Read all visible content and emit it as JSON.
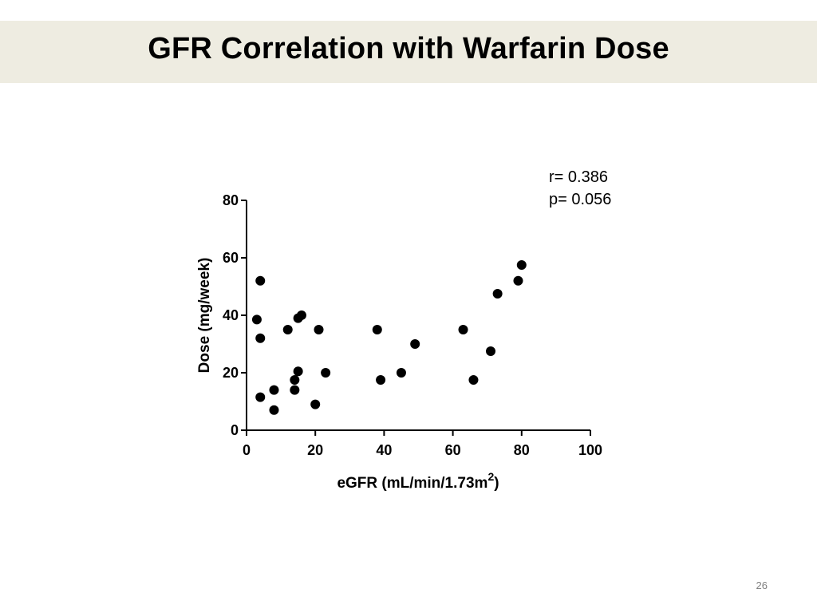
{
  "slide": {
    "title": "GFR Correlation with Warfarin Dose",
    "page_number": "26"
  },
  "chart_data": {
    "type": "scatter",
    "title": "",
    "xlabel": "eGFR (mL/min/1.73m",
    "xlabel_superscript": "2",
    "xlabel_suffix": ")",
    "ylabel": "Dose (mg/week)",
    "xlim": [
      0,
      100
    ],
    "ylim": [
      0,
      80
    ],
    "xticks": [
      0,
      20,
      40,
      60,
      80,
      100
    ],
    "yticks": [
      0,
      20,
      40,
      60,
      80
    ],
    "grid": false,
    "annotations": [
      "r= 0.386",
      "p= 0.056"
    ],
    "point_color": "#000000",
    "points": [
      [
        3,
        38.5
      ],
      [
        4,
        52
      ],
      [
        4,
        32
      ],
      [
        4,
        11.5
      ],
      [
        8,
        14
      ],
      [
        8,
        7
      ],
      [
        12,
        35
      ],
      [
        14,
        17.5
      ],
      [
        14,
        14
      ],
      [
        15,
        39
      ],
      [
        15,
        20.5
      ],
      [
        16,
        40
      ],
      [
        20,
        9
      ],
      [
        21,
        35
      ],
      [
        23,
        20
      ],
      [
        38,
        35
      ],
      [
        39,
        17.5
      ],
      [
        45,
        20
      ],
      [
        49,
        30
      ],
      [
        63,
        35
      ],
      [
        66,
        17.5
      ],
      [
        71,
        27.5
      ],
      [
        73,
        47.5
      ],
      [
        79,
        52
      ],
      [
        80,
        57.5
      ]
    ]
  }
}
